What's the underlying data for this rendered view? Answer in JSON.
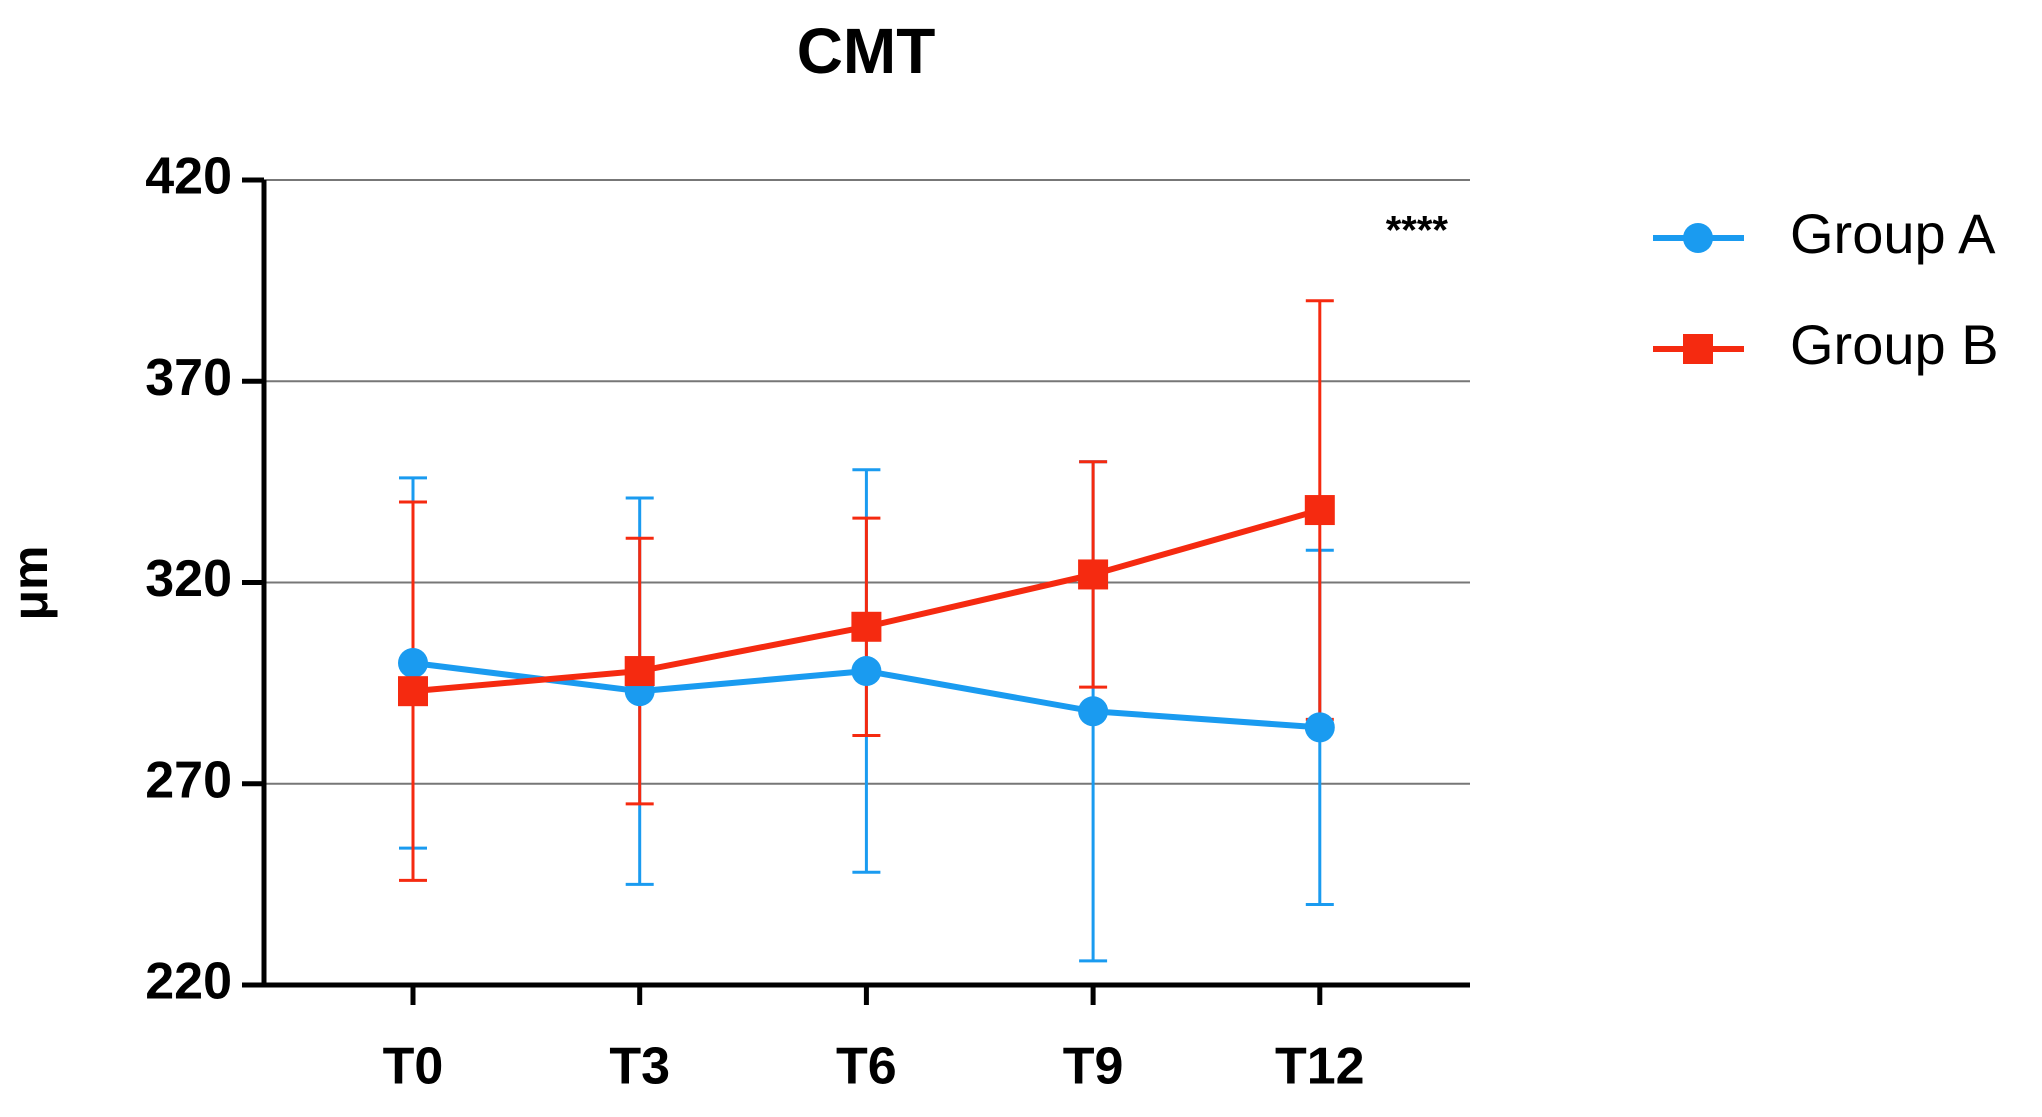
{
  "chart_data": {
    "type": "line",
    "title": "CMT",
    "y_label": "μm",
    "categories": [
      "T0",
      "T3",
      "T6",
      "T9",
      "T12"
    ],
    "series": [
      {
        "name": "Group A",
        "color": "#1a9bf0",
        "marker": "circle",
        "values": [
          300,
          293,
          298,
          288,
          284
        ],
        "error": [
          46,
          48,
          50,
          62,
          44
        ]
      },
      {
        "name": "Group B",
        "color": "#f52a10",
        "marker": "square",
        "values": [
          293,
          298,
          309,
          322,
          338
        ],
        "error": [
          47,
          33,
          27,
          28,
          52
        ]
      }
    ],
    "ylim": [
      220,
      420
    ],
    "yticks": [
      220,
      270,
      320,
      370,
      420
    ],
    "grid": true,
    "annotation": "****",
    "legend": "right"
  }
}
